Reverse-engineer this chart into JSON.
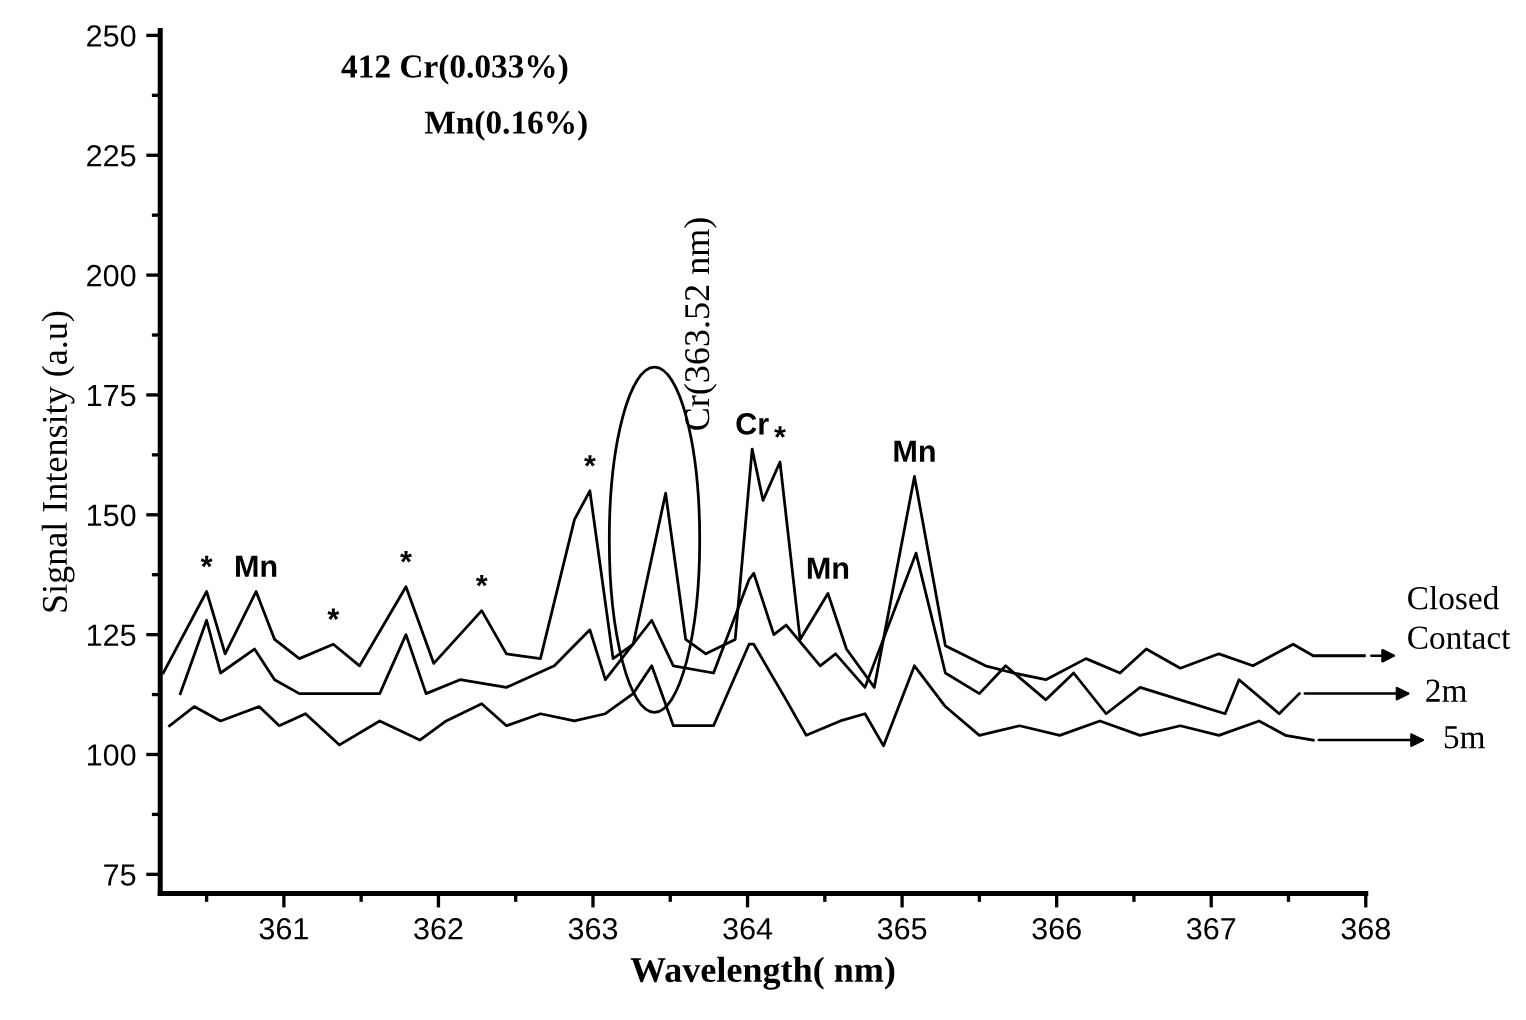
{
  "chart_data": {
    "type": "line",
    "xlabel": "Wavelength( nm)",
    "ylabel": "Signal Intensity (a.u)",
    "xlim": [
      360.2,
      368
    ],
    "ylim": [
      71,
      251
    ],
    "xticks": [
      361,
      362,
      363,
      364,
      365,
      366,
      367,
      368
    ],
    "yticks": [
      75,
      100,
      125,
      150,
      175,
      200,
      225,
      250
    ],
    "grid": false,
    "legend": "right",
    "marker": "none",
    "line_style": "solid",
    "series": [
      {
        "name": "Closed Contact",
        "color": "#000000",
        "x": [
          360.22,
          360.5,
          360.62,
          360.82,
          360.94,
          361.1,
          361.32,
          361.49,
          361.79,
          361.97,
          362.28,
          362.44,
          362.66,
          362.88,
          362.98,
          363.13,
          363.26,
          363.47,
          363.6,
          363.73,
          363.92,
          364.03,
          364.1,
          364.21,
          364.34,
          364.52,
          364.64,
          364.82,
          365.08,
          365.28,
          365.54,
          365.72,
          365.93,
          366.19,
          366.41,
          366.58,
          366.8,
          367.05,
          367.27,
          367.53,
          367.66,
          368.0
        ],
        "values": [
          117,
          134,
          121,
          134,
          124,
          120,
          123,
          118.5,
          135,
          119,
          130,
          121,
          120,
          149,
          155,
          120,
          123,
          154.5,
          124,
          121,
          124,
          163.7,
          153,
          161,
          124,
          133.6,
          122,
          114,
          158,
          122.7,
          118.5,
          117,
          115.6,
          120,
          117,
          122,
          118,
          121,
          118.5,
          123,
          120.6,
          120.6
        ]
      },
      {
        "name": "2m",
        "color": "#000000",
        "x": [
          360.33,
          360.5,
          360.59,
          360.81,
          360.94,
          361.1,
          361.36,
          361.62,
          361.79,
          361.92,
          362.14,
          362.44,
          362.75,
          362.98,
          363.08,
          363.38,
          363.52,
          363.78,
          364.01,
          364.04,
          364.17,
          364.25,
          364.47,
          364.57,
          364.76,
          365.09,
          365.28,
          365.5,
          365.67,
          365.93,
          366.11,
          366.32,
          366.54,
          366.8,
          367.09,
          367.18,
          367.44,
          367.57
        ],
        "values": [
          112.7,
          128,
          117,
          122,
          115.6,
          112.7,
          112.7,
          112.7,
          125,
          112.7,
          115.6,
          114,
          118.5,
          126,
          115.6,
          128,
          118.5,
          117,
          136.5,
          137.8,
          125,
          127,
          118.5,
          121,
          114,
          142,
          117,
          112.7,
          118.5,
          111.4,
          117,
          108.5,
          114,
          111.4,
          108.5,
          115.6,
          108.5,
          112.7
        ]
      },
      {
        "name": "5m",
        "color": "#000000",
        "x": [
          360.26,
          360.42,
          360.59,
          360.84,
          360.97,
          361.14,
          361.36,
          361.62,
          361.88,
          362.05,
          362.28,
          362.44,
          362.66,
          362.88,
          363.08,
          363.26,
          363.38,
          363.52,
          363.78,
          364.01,
          364.04,
          364.25,
          364.38,
          364.6,
          364.76,
          364.88,
          365.08,
          365.28,
          365.5,
          365.76,
          366.02,
          366.28,
          366.54,
          366.8,
          367.05,
          367.31,
          367.48,
          367.66
        ],
        "values": [
          106,
          110,
          107,
          110,
          106,
          108.5,
          102,
          107,
          103,
          107,
          110.6,
          106,
          108.5,
          107,
          108.5,
          112.7,
          118.5,
          106,
          106,
          123,
          123,
          111.4,
          104,
          107,
          108.5,
          101.8,
          118.5,
          110,
          104,
          106,
          104,
          107,
          104,
          106,
          104,
          107,
          104,
          103
        ]
      }
    ],
    "annotations": [
      "412 Cr(0.033%)",
      "Mn(0.16%)",
      "Cr(363.52 nm)",
      {
        "text": "*",
        "x": 360.5,
        "y": 134
      },
      {
        "text": "Mn",
        "x": 360.82,
        "y": 134
      },
      {
        "text": "*",
        "x": 361.32,
        "y": 123
      },
      {
        "text": "*",
        "x": 361.79,
        "y": 135
      },
      {
        "text": "*",
        "x": 362.28,
        "y": 130
      },
      {
        "text": "*",
        "x": 362.98,
        "y": 155
      },
      {
        "text": "Cr",
        "x": 364.03,
        "y": 163.7
      },
      {
        "text": "*",
        "x": 364.21,
        "y": 161
      },
      {
        "text": "Mn",
        "x": 364.52,
        "y": 133.6
      },
      {
        "text": "Mn",
        "x": 365.08,
        "y": 158
      }
    ]
  }
}
